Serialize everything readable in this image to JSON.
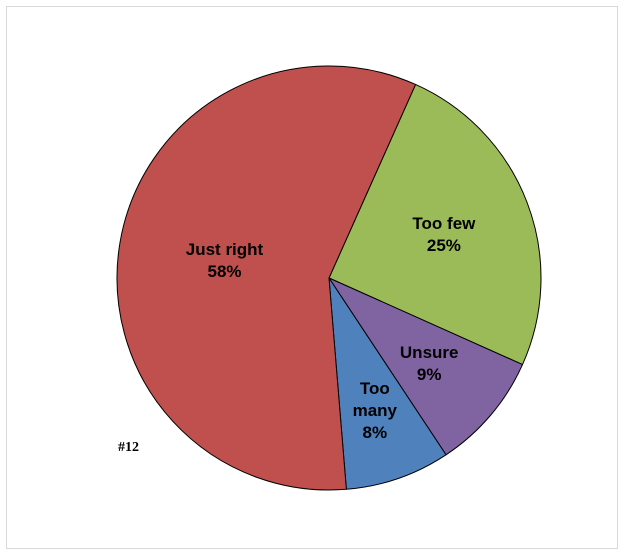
{
  "figure_tag": "#12",
  "chart_data": {
    "type": "pie",
    "title": "",
    "legend": "none",
    "slices": [
      {
        "label_lines": [
          "Too few",
          "25%"
        ],
        "value": 25,
        "color": "#9BBB59"
      },
      {
        "label_lines": [
          "Unsure",
          "9%"
        ],
        "value": 9,
        "color": "#8064A2"
      },
      {
        "label_lines": [
          "Too",
          "many",
          "8%"
        ],
        "value": 8,
        "color": "#4F81BD"
      },
      {
        "label_lines": [
          "Just right",
          "58%"
        ],
        "value": 58,
        "color": "#C0504D"
      }
    ]
  }
}
